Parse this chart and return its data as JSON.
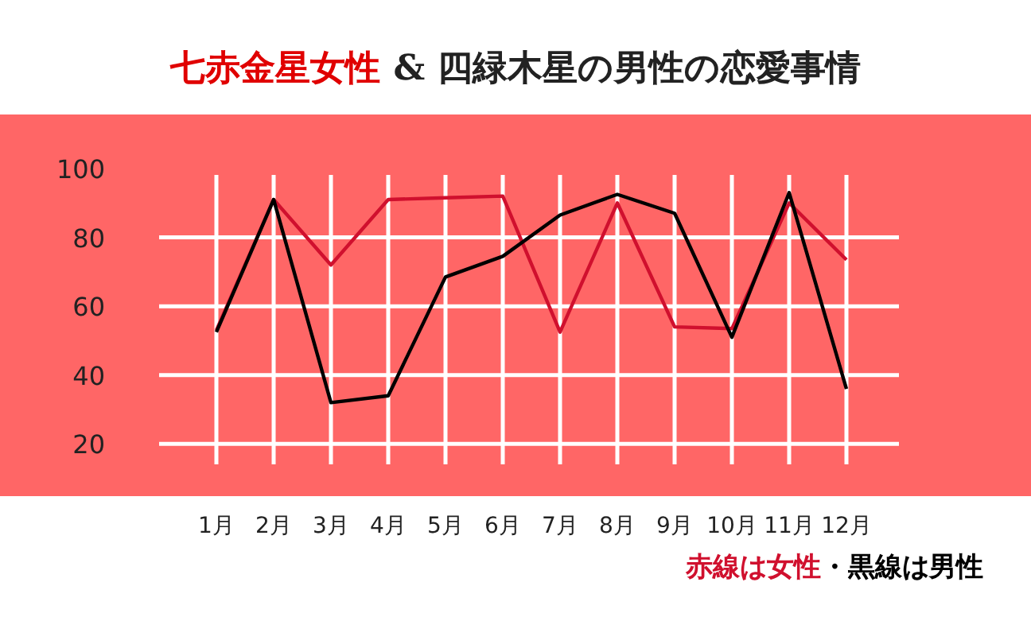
{
  "chart_data": {
    "type": "line",
    "title": "七赤金星女性",
    "subtitle": "& 四緑木星の男性の恋愛事情",
    "categories": [
      "1月",
      "2月",
      "3月",
      "4月",
      "5月",
      "6月",
      "7月",
      "8月",
      "9月",
      "10月",
      "11月",
      "12月"
    ],
    "series": [
      {
        "name": "赤線は女性",
        "color": "#d0102e",
        "values": [
          53,
          91,
          72,
          91,
          91.5,
          92,
          52.5,
          90,
          54,
          53.5,
          90,
          73.5
        ]
      },
      {
        "name": "・黒線は男性",
        "color": "#000000",
        "values": [
          52.5,
          91,
          32,
          34,
          68.5,
          74.5,
          86.5,
          92.5,
          87,
          51,
          93,
          36
        ]
      }
    ],
    "ylim": [
      15,
      100
    ],
    "yticks": [
      20,
      40,
      60,
      80,
      100
    ],
    "grid": true,
    "legend": "bottom right",
    "marker": "none",
    "line_style": "solid"
  }
}
